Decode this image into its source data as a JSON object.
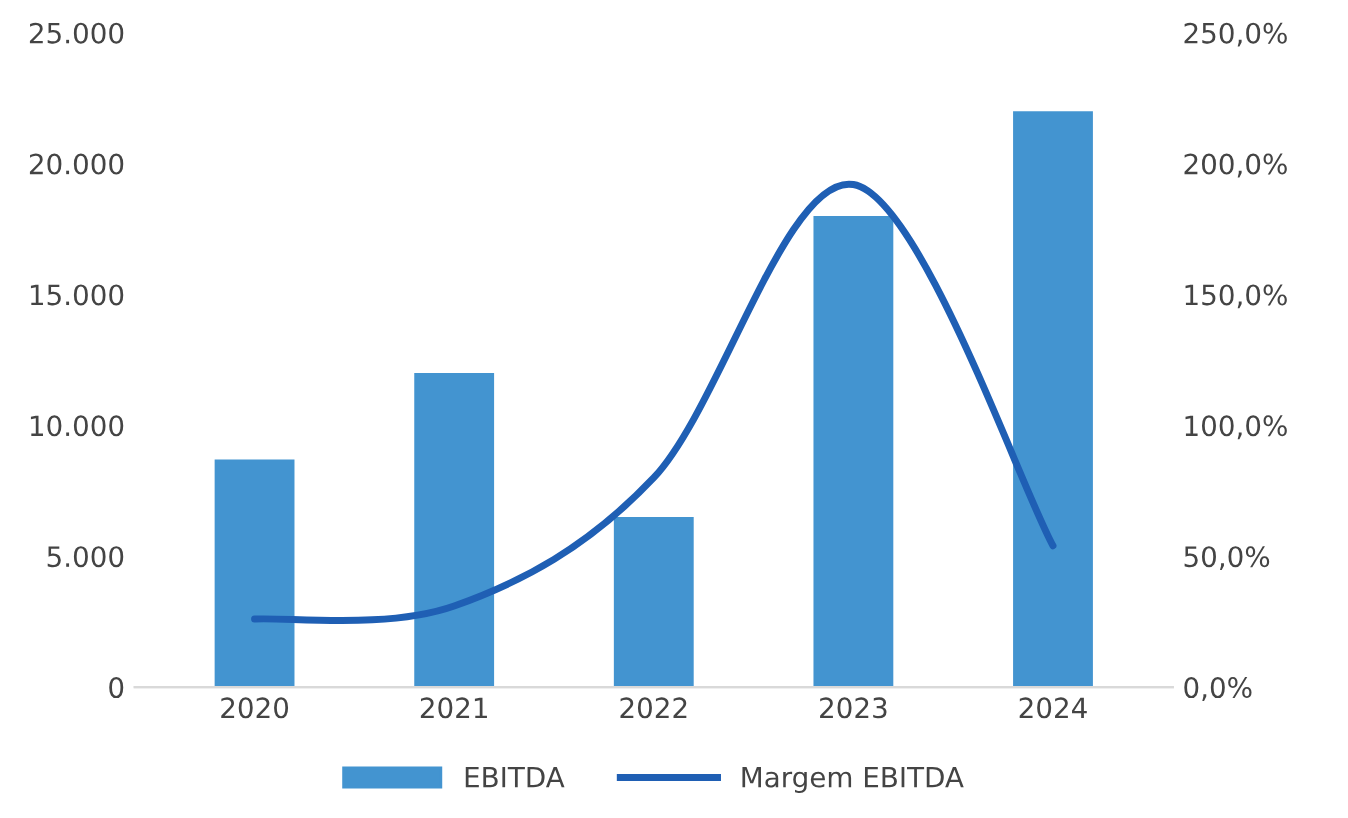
{
  "chart_data": {
    "type": "bar",
    "categories": [
      "2020",
      "2021",
      "2022",
      "2023",
      "2024"
    ],
    "series": [
      {
        "name": "EBITDA",
        "color": "#4394d0",
        "values": [
          8700,
          12000,
          6500,
          18000,
          22000
        ]
      },
      {
        "name": "Margem EBITDA",
        "type": "line",
        "axis": "y2",
        "color": "#1f5fb4",
        "values": [
          26,
          31,
          80,
          192,
          54
        ]
      }
    ],
    "ylim": [
      0,
      25000
    ],
    "yticks": [
      {
        "value": 0,
        "label": "0"
      },
      {
        "value": 5000,
        "label": "5.000"
      },
      {
        "value": 10000,
        "label": "10.000"
      },
      {
        "value": 15000,
        "label": "15.000"
      },
      {
        "value": 20000,
        "label": "20.000"
      },
      {
        "value": 25000,
        "label": "25.000"
      }
    ],
    "y2lim": [
      0,
      250
    ],
    "y2ticks": [
      {
        "value": 0,
        "label": "0,0%"
      },
      {
        "value": 50,
        "label": "50,0%"
      },
      {
        "value": 100,
        "label": "100,0%"
      },
      {
        "value": 150,
        "label": "150,0%"
      },
      {
        "value": 200,
        "label": "200,0%"
      },
      {
        "value": 250,
        "label": "250,0%"
      }
    ],
    "legend": "bottom",
    "grid": false
  }
}
